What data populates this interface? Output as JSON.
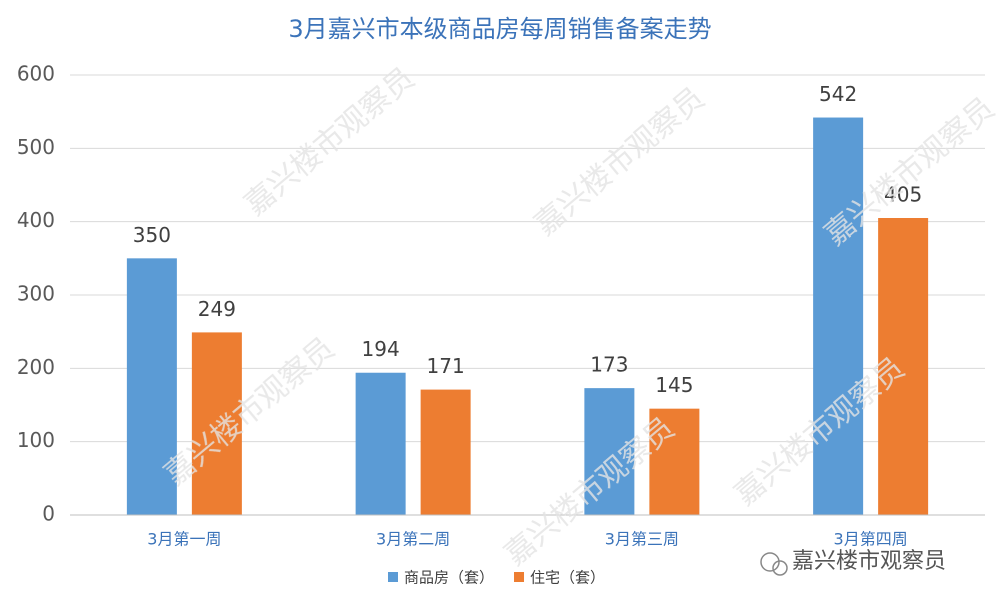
{
  "chart_data": {
    "type": "bar",
    "title": "3月嘉兴市本级商品房每周销售备案走势",
    "categories": [
      "3月第一周",
      "3月第二周",
      "3月第三周",
      "3月第四周"
    ],
    "series": [
      {
        "name": "商品房（套）",
        "color": "#5b9bd5",
        "values": [
          350,
          194,
          173,
          542
        ]
      },
      {
        "name": "住宅（套）",
        "color": "#ed7d31",
        "values": [
          249,
          171,
          145,
          405
        ]
      }
    ],
    "ylim": [
      0,
      600
    ],
    "yticks": [
      0,
      100,
      200,
      300,
      400,
      500,
      600
    ],
    "grid": true,
    "legend": "bottom",
    "watermark": "嘉兴楼市观察员",
    "source": "嘉兴楼市观察员"
  }
}
